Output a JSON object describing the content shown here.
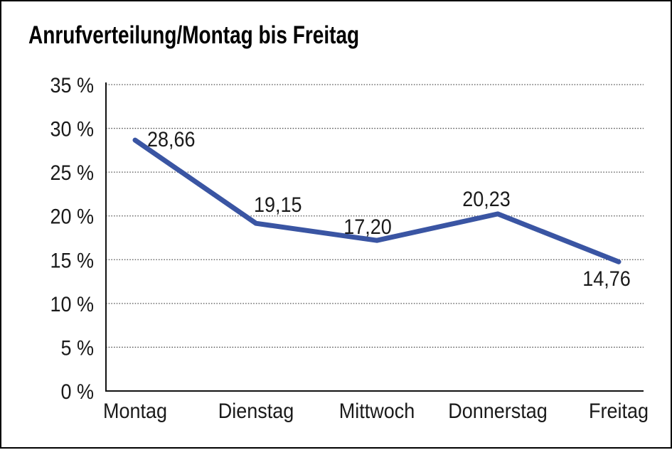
{
  "title": "Anrufverteilung/Montag bis Freitag",
  "chart_data": {
    "type": "line",
    "title": "Anrufverteilung/Montag bis Freitag",
    "categories": [
      "Montag",
      "Dienstag",
      "Mittwoch",
      "Donnerstag",
      "Freitag"
    ],
    "values": [
      28.66,
      19.15,
      17.2,
      20.23,
      14.76
    ],
    "point_labels": [
      "28,66",
      "19,15",
      "17,20",
      "20,23",
      "14,76"
    ],
    "xlabel": "",
    "ylabel": "",
    "ylim": [
      0,
      35
    ],
    "yticks": [
      0,
      5,
      10,
      15,
      20,
      25,
      30,
      35
    ],
    "ytick_labels": [
      "0 %",
      "5 %",
      "10 %",
      "15 %",
      "20 %",
      "25 %",
      "30 %",
      "35 %"
    ],
    "grid": "horizontal-dotted",
    "legend_position": "none",
    "line_color": "#3A55A3",
    "axis_color": "#111111",
    "grid_color": "#4D4D4D",
    "text_color": "#1A1A1A",
    "background": "#FFFFFF",
    "frame_border_color": "#000000"
  }
}
